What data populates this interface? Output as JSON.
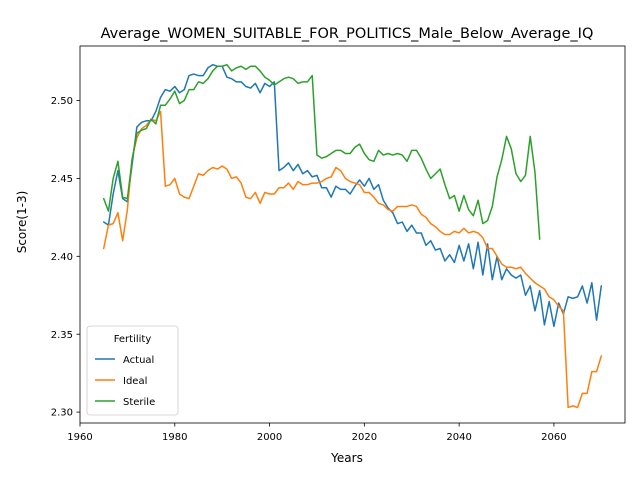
{
  "chart_data": {
    "type": "line",
    "title": "Average_WOMEN_SUITABLE_FOR_POLITICS_Male_Below_Average_IQ",
    "xlabel": "Years",
    "ylabel": "Score(1-3)",
    "xlim": [
      1960,
      2075
    ],
    "ylim": [
      2.293,
      2.535
    ],
    "xticks": [
      1960,
      1980,
      2000,
      2020,
      2040,
      2060
    ],
    "yticks": [
      2.3,
      2.35,
      2.4,
      2.45,
      2.5
    ],
    "ytick_labels": [
      "2.30",
      "2.35",
      "2.40",
      "2.45",
      "2.50"
    ],
    "grid": false,
    "legend": {
      "title": "Fertility",
      "placement": "lower-left"
    },
    "series": [
      {
        "name": "Actual",
        "color": "#1f77b4",
        "x": [
          1965,
          1966,
          1967,
          1968,
          1969,
          1970,
          1971,
          1972,
          1973,
          1974,
          1975,
          1976,
          1977,
          1978,
          1979,
          1980,
          1981,
          1982,
          1983,
          1984,
          1985,
          1986,
          1987,
          1988,
          1989,
          1990,
          1991,
          1992,
          1993,
          1994,
          1995,
          1996,
          1997,
          1998,
          1999,
          2000,
          2001,
          2002,
          2003,
          2004,
          2005,
          2006,
          2007,
          2008,
          2009,
          2010,
          2011,
          2012,
          2013,
          2014,
          2015,
          2016,
          2017,
          2018,
          2019,
          2020,
          2021,
          2022,
          2023,
          2024,
          2025,
          2026,
          2027,
          2028,
          2029,
          2030,
          2031,
          2032,
          2033,
          2034,
          2035,
          2036,
          2037,
          2038,
          2039,
          2040,
          2041,
          2042,
          2043,
          2044,
          2045,
          2046,
          2047,
          2048,
          2049,
          2050,
          2051,
          2052,
          2053,
          2054,
          2055,
          2056,
          2057,
          2058,
          2059,
          2060,
          2061,
          2062,
          2063,
          2064,
          2065,
          2066,
          2067,
          2068,
          2069,
          2070
        ],
        "y": [
          2.422,
          2.42,
          2.44,
          2.455,
          2.437,
          2.435,
          2.459,
          2.483,
          2.486,
          2.487,
          2.487,
          2.493,
          2.502,
          2.507,
          2.506,
          2.509,
          2.505,
          2.507,
          2.516,
          2.517,
          2.516,
          2.516,
          2.521,
          2.523,
          2.522,
          2.522,
          2.515,
          2.514,
          2.512,
          2.512,
          2.509,
          2.508,
          2.511,
          2.505,
          2.511,
          2.509,
          2.512,
          2.455,
          2.457,
          2.46,
          2.455,
          2.459,
          2.453,
          2.455,
          2.451,
          2.452,
          2.444,
          2.444,
          2.438,
          2.445,
          2.443,
          2.443,
          2.44,
          2.445,
          2.449,
          2.445,
          2.45,
          2.443,
          2.446,
          2.436,
          2.431,
          2.428,
          2.421,
          2.422,
          2.416,
          2.42,
          2.415,
          2.415,
          2.407,
          2.41,
          2.404,
          2.405,
          2.397,
          2.401,
          2.396,
          2.407,
          2.397,
          2.408,
          2.392,
          2.409,
          2.388,
          2.408,
          2.385,
          2.4,
          2.385,
          2.392,
          2.388,
          2.386,
          2.388,
          2.375,
          2.381,
          2.365,
          2.378,
          2.356,
          2.371,
          2.355,
          2.37,
          2.363,
          2.374,
          2.373,
          2.374,
          2.381,
          2.37,
          2.383,
          2.359,
          2.381
        ]
      },
      {
        "name": "Ideal",
        "color": "#ff7f0e",
        "x": [
          1965,
          1966,
          1967,
          1968,
          1969,
          1970,
          1971,
          1972,
          1973,
          1974,
          1975,
          1976,
          1977,
          1978,
          1979,
          1980,
          1981,
          1982,
          1983,
          1984,
          1985,
          1986,
          1987,
          1988,
          1989,
          1990,
          1991,
          1992,
          1993,
          1994,
          1995,
          1996,
          1997,
          1998,
          1999,
          2000,
          2001,
          2002,
          2003,
          2004,
          2005,
          2006,
          2007,
          2008,
          2009,
          2010,
          2011,
          2012,
          2013,
          2014,
          2015,
          2016,
          2017,
          2018,
          2019,
          2020,
          2021,
          2022,
          2023,
          2024,
          2025,
          2026,
          2027,
          2028,
          2029,
          2030,
          2031,
          2032,
          2033,
          2034,
          2035,
          2036,
          2037,
          2038,
          2039,
          2040,
          2041,
          2042,
          2043,
          2044,
          2045,
          2046,
          2047,
          2048,
          2049,
          2050,
          2051,
          2052,
          2053,
          2054,
          2055,
          2056,
          2057,
          2058,
          2059,
          2060,
          2061,
          2062,
          2063,
          2064,
          2065,
          2066,
          2067,
          2068,
          2069,
          2070
        ],
        "y": [
          2.405,
          2.42,
          2.421,
          2.428,
          2.41,
          2.43,
          2.463,
          2.476,
          2.482,
          2.484,
          2.488,
          2.487,
          2.493,
          2.445,
          2.446,
          2.45,
          2.44,
          2.438,
          2.437,
          2.445,
          2.453,
          2.452,
          2.455,
          2.457,
          2.456,
          2.458,
          2.456,
          2.45,
          2.451,
          2.447,
          2.438,
          2.437,
          2.441,
          2.434,
          2.441,
          2.44,
          2.44,
          2.444,
          2.444,
          2.447,
          2.443,
          2.448,
          2.446,
          2.446,
          2.447,
          2.447,
          2.448,
          2.45,
          2.451,
          2.457,
          2.455,
          2.45,
          2.448,
          2.447,
          2.446,
          2.441,
          2.441,
          2.438,
          2.434,
          2.433,
          2.43,
          2.429,
          2.432,
          2.432,
          2.432,
          2.433,
          2.432,
          2.427,
          2.425,
          2.421,
          2.419,
          2.416,
          2.414,
          2.414,
          2.416,
          2.415,
          2.418,
          2.415,
          2.416,
          2.415,
          2.412,
          2.405,
          2.405,
          2.4,
          2.395,
          2.393,
          2.393,
          2.392,
          2.393,
          2.389,
          2.386,
          2.383,
          2.381,
          2.379,
          2.374,
          2.372,
          2.368,
          2.365,
          2.303,
          2.304,
          2.303,
          2.312,
          2.312,
          2.326,
          2.326,
          2.336
        ]
      },
      {
        "name": "Sterile",
        "color": "#2ca02c",
        "x": [
          1965,
          1966,
          1967,
          1968,
          1969,
          1970,
          1971,
          1972,
          1973,
          1974,
          1975,
          1976,
          1977,
          1978,
          1979,
          1980,
          1981,
          1982,
          1983,
          1984,
          1985,
          1986,
          1987,
          1988,
          1989,
          1990,
          1991,
          1992,
          1993,
          1994,
          1995,
          1996,
          1997,
          1998,
          1999,
          2000,
          2001,
          2002,
          2003,
          2004,
          2005,
          2006,
          2007,
          2008,
          2009,
          2010,
          2011,
          2012,
          2013,
          2014,
          2015,
          2016,
          2017,
          2018,
          2019,
          2020,
          2021,
          2022,
          2023,
          2024,
          2025,
          2026,
          2027,
          2028,
          2029,
          2030,
          2031,
          2032,
          2033,
          2034,
          2035,
          2036,
          2037,
          2038,
          2039,
          2040,
          2041,
          2042,
          2043,
          2044,
          2045,
          2046,
          2047,
          2048,
          2049,
          2050,
          2051,
          2052,
          2053,
          2054,
          2055,
          2056,
          2057
        ],
        "y": [
          2.437,
          2.429,
          2.45,
          2.461,
          2.438,
          2.437,
          2.462,
          2.479,
          2.481,
          2.482,
          2.488,
          2.485,
          2.497,
          2.497,
          2.501,
          2.506,
          2.498,
          2.5,
          2.507,
          2.507,
          2.512,
          2.511,
          2.514,
          2.519,
          2.522,
          2.522,
          2.523,
          2.519,
          2.521,
          2.522,
          2.52,
          2.522,
          2.522,
          2.519,
          2.515,
          2.513,
          2.51,
          2.512,
          2.514,
          2.515,
          2.514,
          2.511,
          2.512,
          2.512,
          2.516,
          2.465,
          2.463,
          2.464,
          2.466,
          2.468,
          2.468,
          2.466,
          2.466,
          2.47,
          2.472,
          2.466,
          2.462,
          2.461,
          2.468,
          2.465,
          2.466,
          2.465,
          2.466,
          2.465,
          2.461,
          2.468,
          2.468,
          2.463,
          2.456,
          2.45,
          2.453,
          2.456,
          2.446,
          2.437,
          2.439,
          2.429,
          2.439,
          2.43,
          2.426,
          2.436,
          2.421,
          2.423,
          2.432,
          2.451,
          2.462,
          2.477,
          2.469,
          2.453,
          2.448,
          2.452,
          2.477,
          2.454,
          2.411
        ]
      }
    ]
  }
}
